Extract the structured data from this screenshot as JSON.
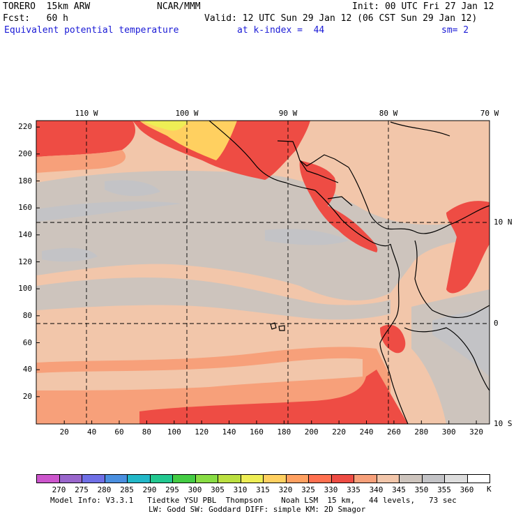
{
  "header": {
    "model": "TORERO  15km ARW",
    "org": "NCAR/MMM",
    "init": "Init: 00 UTC Fri 27 Jan 12",
    "fcst": "Fcst:   60 h",
    "valid": "Valid: 12 UTC Sun 29 Jan 12 (06 CST Sun 29 Jan 12)",
    "field": "Equivalent potential temperature",
    "level": "at k-index =  44",
    "smooth": "sm= 2"
  },
  "axes": {
    "lon_labels": [
      "110 W",
      "100 W",
      "90 W",
      "80 W",
      "70 W"
    ],
    "lat_labels": [
      "10 N",
      "0",
      "10 S"
    ],
    "y_ticks": [
      "220",
      "200",
      "180",
      "160",
      "140",
      "120",
      "100",
      "80",
      "60",
      "40",
      "20"
    ],
    "x_ticks": [
      "20",
      "40",
      "60",
      "80",
      "100",
      "120",
      "140",
      "160",
      "180",
      "200",
      "220",
      "240",
      "260",
      "280",
      "300",
      "320"
    ]
  },
  "colorbar": {
    "labels": [
      "270",
      "275",
      "280",
      "285",
      "290",
      "295",
      "300",
      "305",
      "310",
      "315",
      "320",
      "325",
      "330",
      "335",
      "340",
      "345",
      "350",
      "355",
      "360"
    ],
    "unit": "K",
    "colors": [
      "#cc55cc",
      "#9966cc",
      "#6f6fe6",
      "#4a8fe0",
      "#22b8c8",
      "#22c890",
      "#44cc44",
      "#88dd44",
      "#bbe040",
      "#eeee55",
      "#ffd060",
      "#ffa060",
      "#ff7050",
      "#ee4c44",
      "#f7a07a",
      "#f2c6aa",
      "#cdc4bd",
      "#c3c3c6",
      "#dddddd",
      "#ffffff"
    ]
  },
  "footer": {
    "line1": "Model Info: V3.3.1   Tiedtke YSU PBL  Thompson    Noah LSM  15 km,   44 levels,   73 sec",
    "line2": "LW: Godd SW: Goddard DIFF: simple KM: 2D Smagor"
  }
}
